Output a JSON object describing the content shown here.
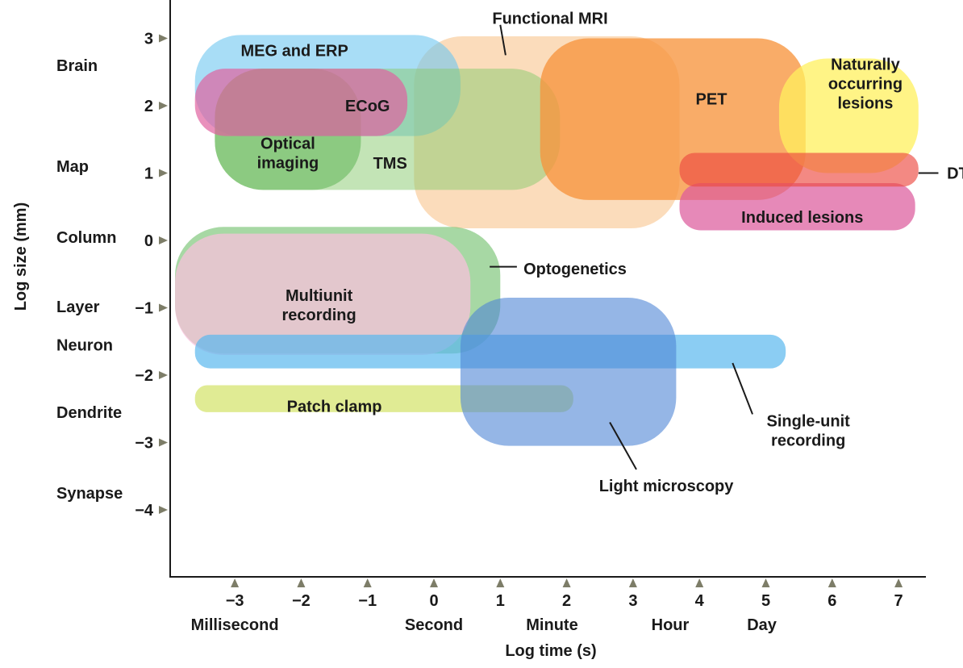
{
  "chart_data": {
    "type": "region-map",
    "xlabel": "Log time (s)",
    "ylabel": "Log size (mm)",
    "x_ticks": [
      -3,
      -2,
      -1,
      0,
      1,
      2,
      3,
      4,
      5,
      6,
      7
    ],
    "y_ticks": [
      3,
      2,
      1,
      0,
      -1,
      -2,
      -3,
      -4
    ],
    "x_tick_labels": [
      "−3",
      "−2",
      "−1",
      "0",
      "1",
      "2",
      "3",
      "4",
      "5",
      "6",
      "7"
    ],
    "y_tick_labels": [
      "3",
      "2",
      "1",
      "0",
      "−1",
      "−2",
      "−3",
      "−4"
    ],
    "time_scale_labels": [
      {
        "text": "Millisecond",
        "value": -3
      },
      {
        "text": "Second",
        "value": 0
      },
      {
        "text": "Minute",
        "value": 1.78
      },
      {
        "text": "Hour",
        "value": 3.56
      },
      {
        "text": "Day",
        "value": 4.94
      }
    ],
    "size_scale_labels": [
      {
        "text": "Brain",
        "value": 2.6
      },
      {
        "text": "Map",
        "value": 1.1
      },
      {
        "text": "Column",
        "value": 0.05
      },
      {
        "text": "Layer",
        "value": -0.98
      },
      {
        "text": "Neuron",
        "value": -1.55
      },
      {
        "text": "Dendrite",
        "value": -2.55
      },
      {
        "text": "Synapse",
        "value": -3.75
      }
    ],
    "regions": [
      {
        "name": "Functional MRI",
        "time": [
          -0.3,
          3.7
        ],
        "size": [
          0.18,
          3.03
        ],
        "color": "#f9c48e",
        "opacity": 0.6
      },
      {
        "name": "MEG and ERP",
        "time": [
          -3.6,
          0.4
        ],
        "size": [
          1.55,
          3.05
        ],
        "color": "#6ec7f0",
        "opacity": 0.6
      },
      {
        "name": "TMS",
        "time": [
          -3.3,
          1.9
        ],
        "size": [
          0.75,
          2.55
        ],
        "color": "#88c96d",
        "opacity": 0.5
      },
      {
        "name": "Optical imaging",
        "time": [
          -3.3,
          -1.1
        ],
        "size": [
          0.75,
          2.55
        ],
        "color": "#6fbb66",
        "opacity": 0.65
      },
      {
        "name": "ECoG",
        "time": [
          -3.6,
          -0.4
        ],
        "size": [
          1.55,
          2.55
        ],
        "color": "#e0629f",
        "opacity": 0.7
      },
      {
        "name": "PET",
        "time": [
          1.6,
          5.6
        ],
        "size": [
          0.6,
          3.0
        ],
        "color": "#f7953e",
        "opacity": 0.78
      },
      {
        "name": "Naturally occurring lesions",
        "time": [
          5.2,
          7.3
        ],
        "size": [
          1.0,
          2.7
        ],
        "color": "#fff05e",
        "opacity": 0.75
      },
      {
        "name": "Induced lesions",
        "time": [
          3.7,
          7.25
        ],
        "size": [
          0.15,
          0.85
        ],
        "color": "#dc5b9c",
        "opacity": 0.72
      },
      {
        "name": "DTI",
        "time": [
          3.7,
          7.3
        ],
        "size": [
          0.8,
          1.3
        ],
        "color": "#ec4a41",
        "opacity": 0.65
      },
      {
        "name": "Optogenetics",
        "time": [
          -3.9,
          1.0
        ],
        "size": [
          -1.68,
          0.2
        ],
        "color": "#5fb85a",
        "opacity": 0.55
      },
      {
        "name": "Multiunit recording",
        "time": [
          -3.9,
          0.55
        ],
        "size": [
          -1.7,
          0.1
        ],
        "color": "#fcc0de",
        "opacity": 0.7
      },
      {
        "name": "Single-unit recording",
        "time": [
          -3.6,
          5.3
        ],
        "size": [
          -1.9,
          -1.4
        ],
        "color": "#5ab8ee",
        "opacity": 0.7
      },
      {
        "name": "Patch clamp",
        "time": [
          -3.6,
          2.1
        ],
        "size": [
          -2.55,
          -2.15
        ],
        "color": "#cfe05a",
        "opacity": 0.65
      },
      {
        "name": "Light microscopy",
        "time": [
          0.4,
          3.65
        ],
        "size": [
          -3.05,
          -0.85
        ],
        "color": "#4f86d6",
        "opacity": 0.6
      }
    ],
    "region_labels": [
      {
        "lines": [
          "Functional MRI"
        ],
        "anchor": [
          1.75,
          3.3
        ],
        "align": "middle",
        "leader": [
          [
            1.0,
            3.2
          ],
          [
            1.08,
            2.75
          ]
        ]
      },
      {
        "lines": [
          "MEG and ERP"
        ],
        "anchor": [
          -2.1,
          2.82
        ],
        "align": "middle"
      },
      {
        "lines": [
          "ECoG"
        ],
        "anchor": [
          -1.0,
          2.0
        ],
        "align": "middle"
      },
      {
        "lines": [
          "Optical",
          "imaging"
        ],
        "anchor": [
          -2.2,
          1.3
        ],
        "align": "middle"
      },
      {
        "lines": [
          "TMS"
        ],
        "anchor": [
          -0.66,
          1.15
        ],
        "align": "middle"
      },
      {
        "lines": [
          "PET"
        ],
        "anchor": [
          4.18,
          2.1
        ],
        "align": "middle"
      },
      {
        "lines": [
          "Naturally",
          "occurring",
          "lesions"
        ],
        "anchor": [
          6.5,
          2.33
        ],
        "align": "middle"
      },
      {
        "lines": [
          "DTI"
        ],
        "anchor": [
          7.73,
          1.0
        ],
        "align": "start",
        "leader": [
          [
            7.3,
            1.0
          ],
          [
            7.6,
            1.0
          ]
        ]
      },
      {
        "lines": [
          "Induced lesions"
        ],
        "anchor": [
          5.55,
          0.35
        ],
        "align": "middle"
      },
      {
        "lines": [
          "Optogenetics"
        ],
        "anchor": [
          1.35,
          -0.42
        ],
        "align": "start",
        "leader": [
          [
            0.84,
            -0.39
          ],
          [
            1.25,
            -0.39
          ]
        ]
      },
      {
        "lines": [
          "Multiunit",
          "recording"
        ],
        "anchor": [
          -1.73,
          -0.96
        ],
        "align": "middle"
      },
      {
        "lines": [
          "Patch clamp"
        ],
        "anchor": [
          -1.5,
          -2.46
        ],
        "align": "middle"
      },
      {
        "lines": [
          "Single-unit",
          "recording"
        ],
        "anchor": [
          5.64,
          -2.82
        ],
        "align": "middle",
        "leader": [
          [
            4.5,
            -1.82
          ],
          [
            4.8,
            -2.58
          ]
        ]
      },
      {
        "lines": [
          "Light microscopy"
        ],
        "anchor": [
          3.5,
          -3.64
        ],
        "align": "middle",
        "leader": [
          [
            2.65,
            -2.7
          ],
          [
            3.05,
            -3.4
          ]
        ]
      }
    ]
  }
}
